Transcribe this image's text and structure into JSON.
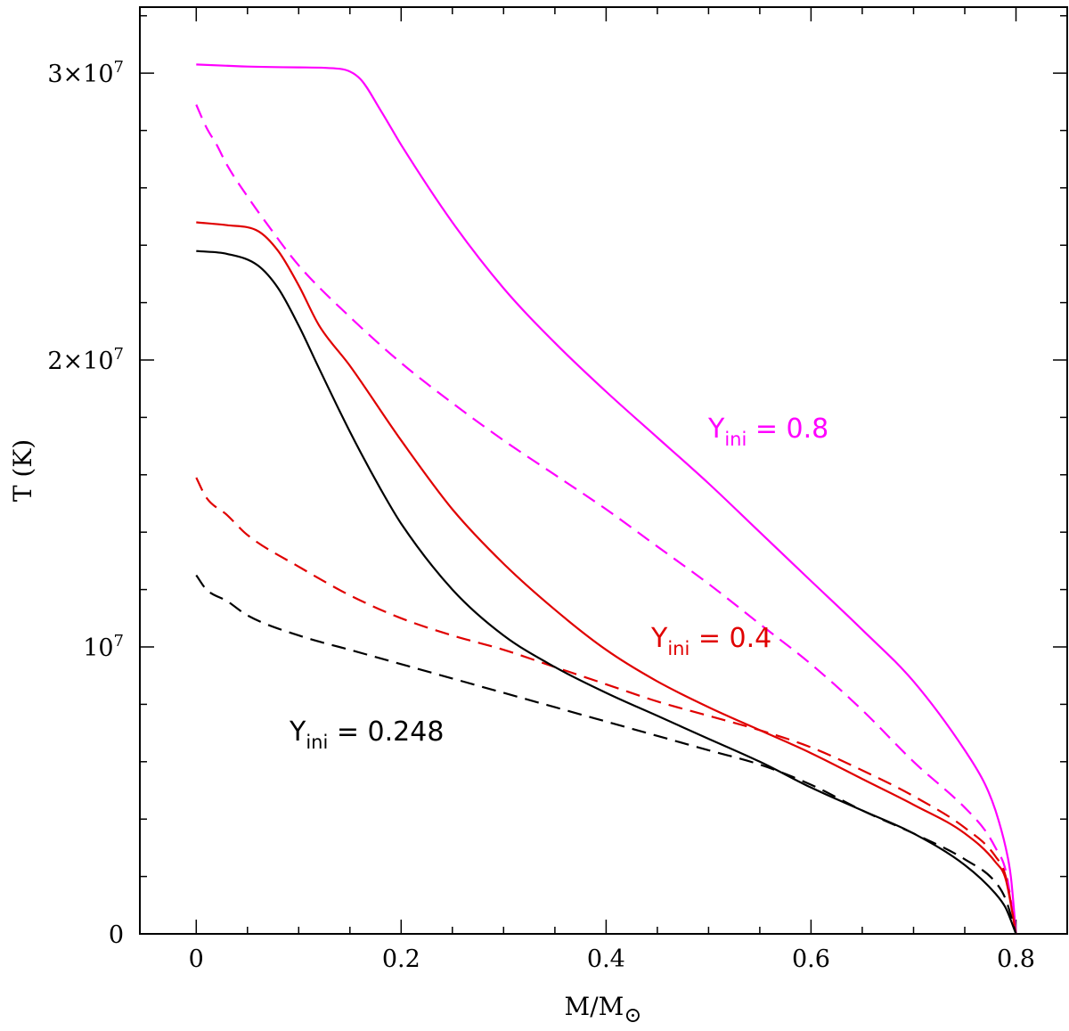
{
  "chart_data": {
    "type": "line",
    "title": "",
    "xlabel": "M/M",
    "xlabel_symbol": "⊙",
    "ylabel": "T (K)",
    "xlim": [
      -0.055,
      0.85
    ],
    "ylim": [
      0,
      32300000
    ],
    "grid": false,
    "legend": "none",
    "x_ticks": [
      {
        "value": 0,
        "label": "0"
      },
      {
        "value": 0.2,
        "label": "0.2"
      },
      {
        "value": 0.4,
        "label": "0.4"
      },
      {
        "value": 0.6,
        "label": "0.6"
      },
      {
        "value": 0.8,
        "label": "0.8"
      }
    ],
    "y_ticks": [
      {
        "value": 0,
        "base": "0",
        "exp": ""
      },
      {
        "value": 10000000,
        "base": "10",
        "exp": "7"
      },
      {
        "value": 20000000,
        "base": "2×10",
        "exp": "7"
      },
      {
        "value": 30000000,
        "base": "3×10",
        "exp": "7"
      }
    ],
    "annotations": [
      {
        "main": "Y",
        "sub": "ini",
        "rest": " = 0.8",
        "color": "#ff00ff"
      },
      {
        "main": "Y",
        "sub": "ini",
        "rest": " = 0.4",
        "color": "#e00000"
      },
      {
        "main": "Y",
        "sub": "ini",
        "rest": " = 0.248",
        "color": "#000000"
      }
    ],
    "series": [
      {
        "color": "#ff00ff",
        "style": "solid",
        "x": [
          0,
          0.05,
          0.1,
          0.14,
          0.16,
          0.18,
          0.2,
          0.25,
          0.3,
          0.35,
          0.4,
          0.45,
          0.5,
          0.55,
          0.6,
          0.65,
          0.7,
          0.75,
          0.77,
          0.78,
          0.79,
          0.795,
          0.8
        ],
        "y": [
          30300000,
          30230000,
          30200000,
          30150000,
          29800000,
          28700000,
          27500000,
          24800000,
          22500000,
          20600000,
          18900000,
          17300000,
          15700000,
          14000000,
          12300000,
          10600000,
          8800000,
          6400000,
          5200000,
          4300000,
          3000000,
          2000000,
          0
        ]
      },
      {
        "color": "#ff00ff",
        "style": "dashed",
        "x": [
          0,
          0.01,
          0.02,
          0.03,
          0.05,
          0.07,
          0.1,
          0.15,
          0.2,
          0.25,
          0.3,
          0.35,
          0.4,
          0.45,
          0.5,
          0.55,
          0.6,
          0.65,
          0.7,
          0.75,
          0.77,
          0.78,
          0.79,
          0.8
        ],
        "y": [
          28900000,
          28100000,
          27500000,
          26800000,
          25700000,
          24700000,
          23300000,
          21500000,
          19900000,
          18500000,
          17200000,
          16000000,
          14800000,
          13500000,
          12200000,
          10800000,
          9400000,
          7800000,
          6000000,
          4400000,
          3600000,
          3000000,
          2200000,
          0
        ]
      },
      {
        "color": "#e00000",
        "style": "solid",
        "x": [
          0,
          0.03,
          0.06,
          0.08,
          0.1,
          0.12,
          0.15,
          0.2,
          0.25,
          0.3,
          0.35,
          0.4,
          0.45,
          0.5,
          0.55,
          0.6,
          0.65,
          0.7,
          0.75,
          0.78,
          0.79,
          0.8
        ],
        "y": [
          24800000,
          24700000,
          24500000,
          23800000,
          22600000,
          21200000,
          19800000,
          17200000,
          14800000,
          12900000,
          11300000,
          9900000,
          8800000,
          7900000,
          7100000,
          6300000,
          5400000,
          4500000,
          3500000,
          2500000,
          1900000,
          0
        ]
      },
      {
        "color": "#e00000",
        "style": "dashed",
        "x": [
          0,
          0.01,
          0.03,
          0.05,
          0.1,
          0.15,
          0.2,
          0.25,
          0.3,
          0.35,
          0.4,
          0.45,
          0.5,
          0.55,
          0.6,
          0.65,
          0.7,
          0.75,
          0.78,
          0.79,
          0.8
        ],
        "y": [
          15900000,
          15200000,
          14600000,
          13900000,
          12800000,
          11800000,
          11000000,
          10400000,
          9900000,
          9300000,
          8700000,
          8100000,
          7600000,
          7100000,
          6500000,
          5700000,
          4800000,
          3700000,
          2700000,
          2000000,
          0
        ]
      },
      {
        "color": "#000000",
        "style": "solid",
        "x": [
          0,
          0.03,
          0.06,
          0.08,
          0.1,
          0.12,
          0.15,
          0.18,
          0.2,
          0.25,
          0.3,
          0.35,
          0.4,
          0.45,
          0.5,
          0.55,
          0.6,
          0.65,
          0.7,
          0.75,
          0.78,
          0.79,
          0.8
        ],
        "y": [
          23800000,
          23700000,
          23300000,
          22500000,
          21200000,
          19700000,
          17500000,
          15500000,
          14300000,
          12000000,
          10400000,
          9300000,
          8400000,
          7600000,
          6800000,
          6000000,
          5100000,
          4300000,
          3500000,
          2400000,
          1400000,
          900000,
          0
        ]
      },
      {
        "color": "#000000",
        "style": "dashed",
        "x": [
          0,
          0.01,
          0.03,
          0.05,
          0.1,
          0.15,
          0.2,
          0.25,
          0.3,
          0.35,
          0.4,
          0.45,
          0.5,
          0.55,
          0.6,
          0.65,
          0.7,
          0.75,
          0.78,
          0.79,
          0.8
        ],
        "y": [
          12500000,
          12000000,
          11600000,
          11100000,
          10400000,
          9900000,
          9400000,
          8900000,
          8400000,
          7900000,
          7400000,
          6900000,
          6400000,
          5900000,
          5200000,
          4300000,
          3500000,
          2600000,
          1800000,
          1200000,
          0
        ]
      }
    ]
  }
}
